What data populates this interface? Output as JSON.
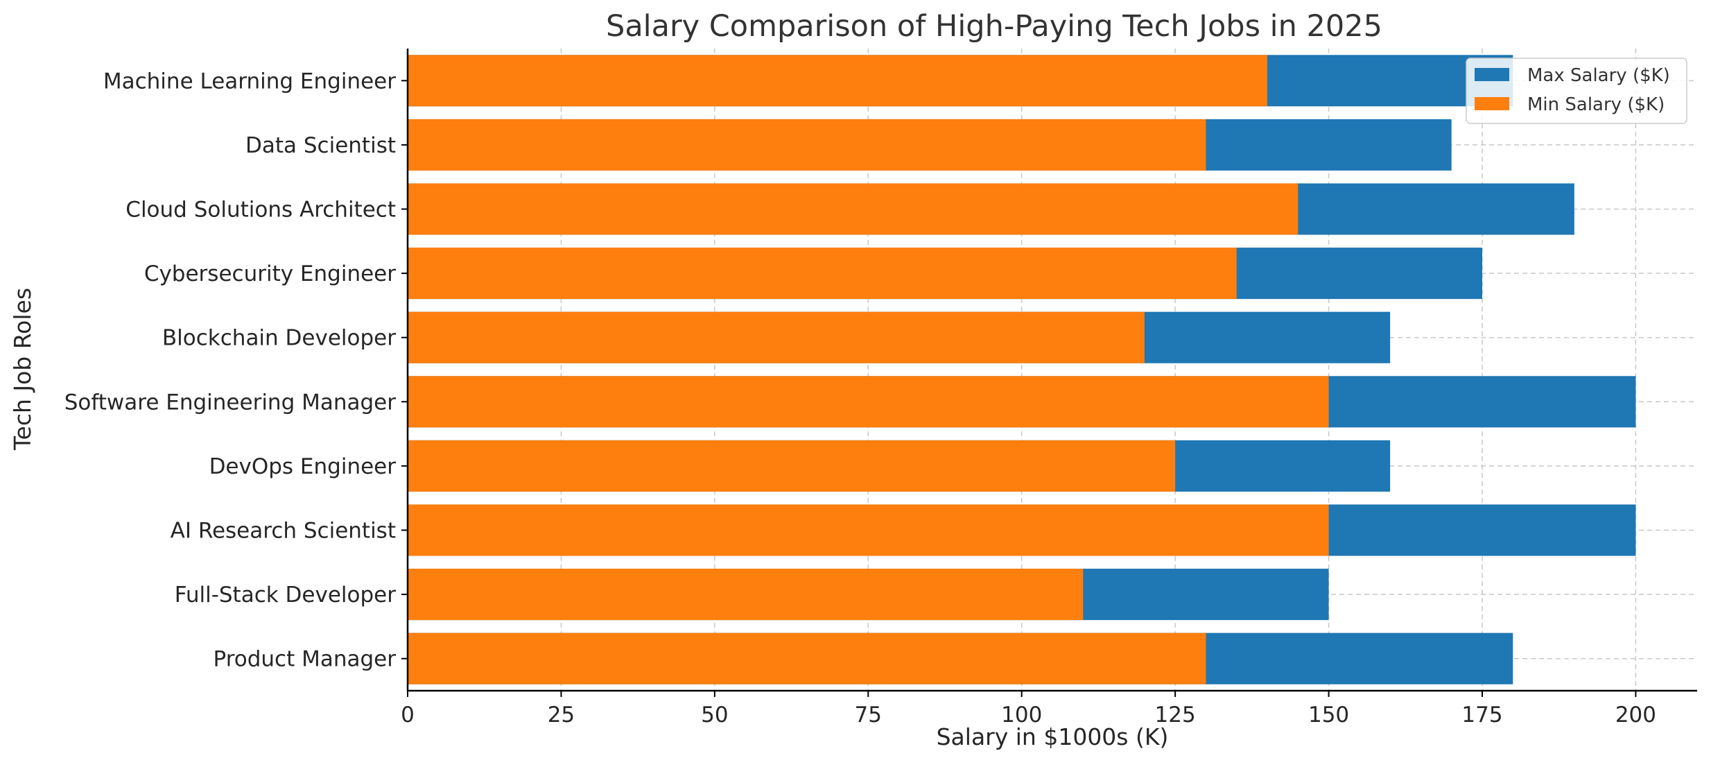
{
  "chart_data": {
    "type": "bar",
    "orientation": "horizontal",
    "stacking": "overlay",
    "title": "Salary Comparison of High-Paying Tech Jobs in 2025",
    "xlabel": "Salary in $1000s (K)",
    "ylabel": "Tech Job Roles",
    "xlim": [
      0,
      210
    ],
    "xticks": [
      0,
      25,
      50,
      75,
      100,
      125,
      150,
      175,
      200
    ],
    "grid": true,
    "legend_position": "top-right",
    "categories": [
      "Machine Learning Engineer",
      "Data Scientist",
      "Cloud Solutions Architect",
      "Cybersecurity Engineer",
      "Blockchain Developer",
      "Software Engineering Manager",
      "DevOps Engineer",
      "AI Research Scientist",
      "Full-Stack Developer",
      "Product Manager"
    ],
    "series": [
      {
        "name": "Max Salary ($K)",
        "color": "#1f77b4",
        "values": [
          180,
          170,
          190,
          175,
          160,
          200,
          160,
          200,
          150,
          180
        ]
      },
      {
        "name": "Min Salary ($K)",
        "color": "#ff7f0e",
        "values": [
          140,
          130,
          145,
          135,
          120,
          150,
          125,
          150,
          110,
          130
        ]
      }
    ]
  }
}
